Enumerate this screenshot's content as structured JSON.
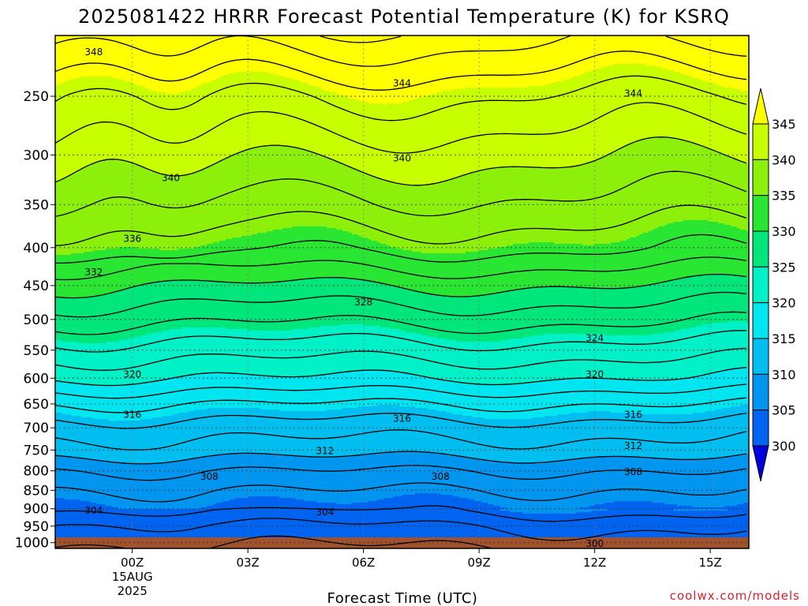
{
  "chart_data": {
    "type": "contour",
    "title": "2025081422 HRRR Forecast Potential Temperature (K) for KSRQ",
    "xlabel": "Forecast Time (UTC)",
    "ylabel": "",
    "y_scale": "log-pressure",
    "pressure_levels": [
      1000,
      950,
      900,
      850,
      800,
      750,
      700,
      650,
      600,
      550,
      500,
      450,
      400,
      350,
      300,
      250
    ],
    "x_ticks": [
      {
        "hour": 0,
        "label": "00Z",
        "sub1": "15AUG",
        "sub2": "2025"
      },
      {
        "hour": 3,
        "label": "03Z",
        "sub1": "",
        "sub2": ""
      },
      {
        "hour": 6,
        "label": "06Z",
        "sub1": "",
        "sub2": ""
      },
      {
        "hour": 9,
        "label": "09Z",
        "sub1": "",
        "sub2": ""
      },
      {
        "hour": 12,
        "label": "12Z",
        "sub1": "",
        "sub2": ""
      },
      {
        "hour": 15,
        "label": "15Z",
        "sub1": "",
        "sub2": ""
      }
    ],
    "x_range_hours": [
      -2,
      16
    ],
    "y_range_hpa": [
      1018,
      207
    ],
    "grid": true,
    "colorbar": {
      "position": "right",
      "ticks": [
        345,
        340,
        335,
        330,
        325,
        320,
        315,
        310,
        305,
        300
      ],
      "bands": [
        {
          "min": 345,
          "max": 360,
          "color": "#ffff00"
        },
        {
          "min": 340,
          "max": 345,
          "color": "#c8ff00"
        },
        {
          "min": 335,
          "max": 340,
          "color": "#8cf00a"
        },
        {
          "min": 330,
          "max": 335,
          "color": "#28e632"
        },
        {
          "min": 325,
          "max": 330,
          "color": "#00e67a"
        },
        {
          "min": 320,
          "max": 325,
          "color": "#00f0c8"
        },
        {
          "min": 315,
          "max": 320,
          "color": "#00e6f0"
        },
        {
          "min": 310,
          "max": 315,
          "color": "#00bef0"
        },
        {
          "min": 305,
          "max": 310,
          "color": "#0096f0"
        },
        {
          "min": 300,
          "max": 305,
          "color": "#0064f0"
        },
        {
          "min": 290,
          "max": 300,
          "color": "#003cf0"
        }
      ],
      "under_color": "#0000dc",
      "over_color": "#ffff00"
    },
    "theta_profile": [
      {
        "p": 1000,
        "theta": 300.5
      },
      {
        "p": 950,
        "theta": 302
      },
      {
        "p": 900,
        "theta": 304.5
      },
      {
        "p": 850,
        "theta": 306
      },
      {
        "p": 800,
        "theta": 308
      },
      {
        "p": 750,
        "theta": 311
      },
      {
        "p": 700,
        "theta": 313
      },
      {
        "p": 650,
        "theta": 316
      },
      {
        "p": 600,
        "theta": 320
      },
      {
        "p": 550,
        "theta": 323
      },
      {
        "p": 500,
        "theta": 326.5
      },
      {
        "p": 450,
        "theta": 330
      },
      {
        "p": 400,
        "theta": 334.5
      },
      {
        "p": 350,
        "theta": 337.5
      },
      {
        "p": 300,
        "theta": 340.5
      },
      {
        "p": 250,
        "theta": 344
      },
      {
        "p": 207,
        "theta": 349
      }
    ],
    "contour_labels": [
      {
        "value": "348",
        "hour": -1.0,
        "p": 218
      },
      {
        "value": "344",
        "hour": 7.0,
        "p": 240
      },
      {
        "value": "344",
        "hour": 13.0,
        "p": 248
      },
      {
        "value": "340",
        "hour": 1.0,
        "p": 322
      },
      {
        "value": "340",
        "hour": 7.0,
        "p": 303
      },
      {
        "value": "336",
        "hour": 0.0,
        "p": 389
      },
      {
        "value": "332",
        "hour": -1.0,
        "p": 432
      },
      {
        "value": "328",
        "hour": 6.0,
        "p": 474
      },
      {
        "value": "324",
        "hour": 12.0,
        "p": 530
      },
      {
        "value": "320",
        "hour": 0.0,
        "p": 593
      },
      {
        "value": "320",
        "hour": 12.0,
        "p": 593
      },
      {
        "value": "316",
        "hour": 0.0,
        "p": 672
      },
      {
        "value": "316",
        "hour": 7.0,
        "p": 680
      },
      {
        "value": "316",
        "hour": 13.0,
        "p": 672
      },
      {
        "value": "312",
        "hour": 5.0,
        "p": 752
      },
      {
        "value": "312",
        "hour": 13.0,
        "p": 740
      },
      {
        "value": "308",
        "hour": 2.0,
        "p": 815
      },
      {
        "value": "308",
        "hour": 8.0,
        "p": 815
      },
      {
        "value": "308",
        "hour": 13.0,
        "p": 803
      },
      {
        "value": "304",
        "hour": -1.0,
        "p": 905
      },
      {
        "value": "304",
        "hour": 5.0,
        "p": 910
      },
      {
        "value": "300",
        "hour": 12.0,
        "p": 1003
      }
    ]
  },
  "credit": "coolwx.com/models"
}
